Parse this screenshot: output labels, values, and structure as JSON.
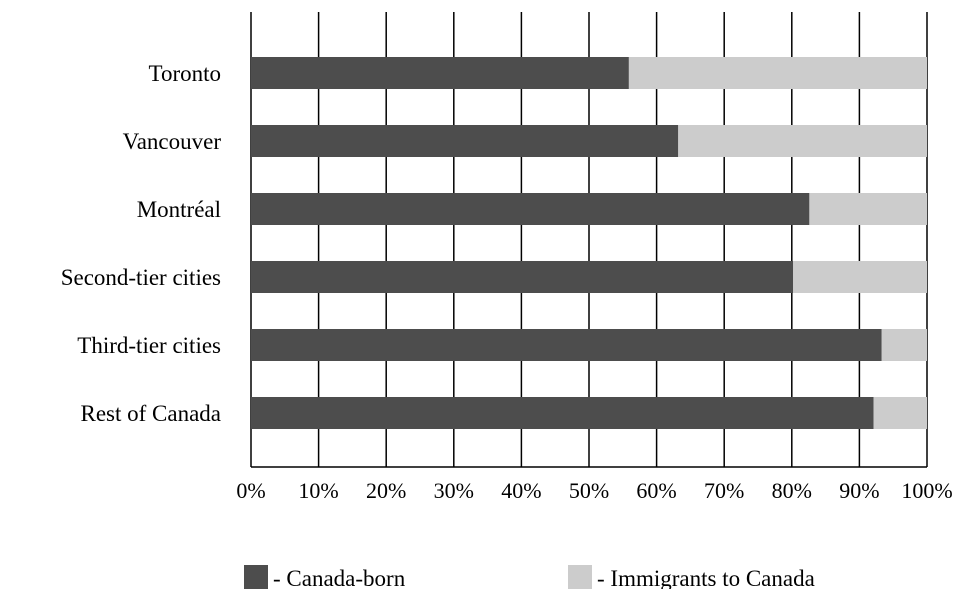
{
  "chart_data": {
    "type": "bar",
    "orientation": "horizontal",
    "stacked": true,
    "percent_scale": true,
    "categories": [
      "Toronto",
      "Vancouver",
      "Montréal",
      "Second-tier cities",
      "Third-tier cities",
      "Rest of Canada"
    ],
    "series": [
      {
        "name": "Canada-born",
        "color": "#4d4d4d",
        "values": [
          55.9,
          63.2,
          82.6,
          80.2,
          93.3,
          92.1
        ]
      },
      {
        "name": "Immigrants to Canada",
        "color": "#cccccc",
        "values": [
          44.1,
          36.8,
          17.4,
          19.8,
          6.7,
          7.9
        ]
      }
    ],
    "xlim": [
      0,
      100
    ],
    "x_ticks": [
      "0%",
      "10%",
      "20%",
      "30%",
      "40%",
      "50%",
      "60%",
      "70%",
      "80%",
      "90%",
      "100%"
    ],
    "vertical_gridlines": true,
    "legend": {
      "position": "bottom",
      "items": [
        {
          "label": "- Canada-born",
          "color": "#4d4d4d"
        },
        {
          "label": "- Immigrants to Canada",
          "color": "#cccccc"
        }
      ]
    },
    "title": "",
    "xlabel": "",
    "ylabel": ""
  }
}
